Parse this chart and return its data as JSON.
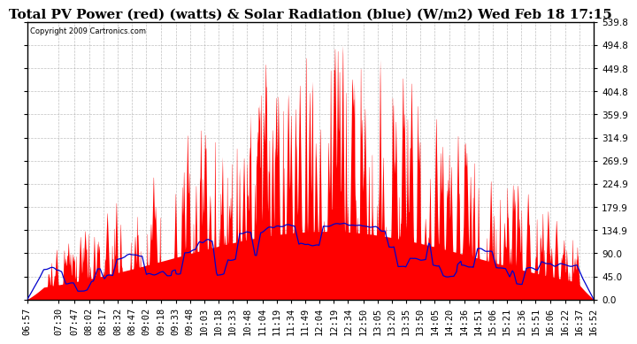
{
  "title": "Total PV Power (red) (watts) & Solar Radiation (blue) (W/m2) Wed Feb 18 17:15",
  "copyright": "Copyright 2009 Cartronics.com",
  "ylim": [
    0.0,
    539.8
  ],
  "yticks": [
    0.0,
    45.0,
    90.0,
    134.9,
    179.9,
    224.9,
    269.9,
    314.9,
    359.9,
    404.8,
    449.8,
    494.8,
    539.8
  ],
  "x_labels": [
    "06:57",
    "07:30",
    "07:47",
    "08:02",
    "08:17",
    "08:32",
    "08:47",
    "09:02",
    "09:18",
    "09:33",
    "09:48",
    "10:03",
    "10:18",
    "10:33",
    "10:48",
    "11:04",
    "11:19",
    "11:34",
    "11:49",
    "12:04",
    "12:19",
    "12:34",
    "12:50",
    "13:05",
    "13:20",
    "13:35",
    "13:50",
    "14:05",
    "14:20",
    "14:36",
    "14:51",
    "15:06",
    "15:21",
    "15:36",
    "15:51",
    "16:06",
    "16:22",
    "16:37",
    "16:52"
  ],
  "background_color": "#ffffff",
  "plot_bg_color": "#ffffff",
  "grid_color": "#b0b0b0",
  "red_color": "#ff0000",
  "blue_color": "#0000cc",
  "title_fontsize": 11,
  "tick_fontsize": 7.5
}
